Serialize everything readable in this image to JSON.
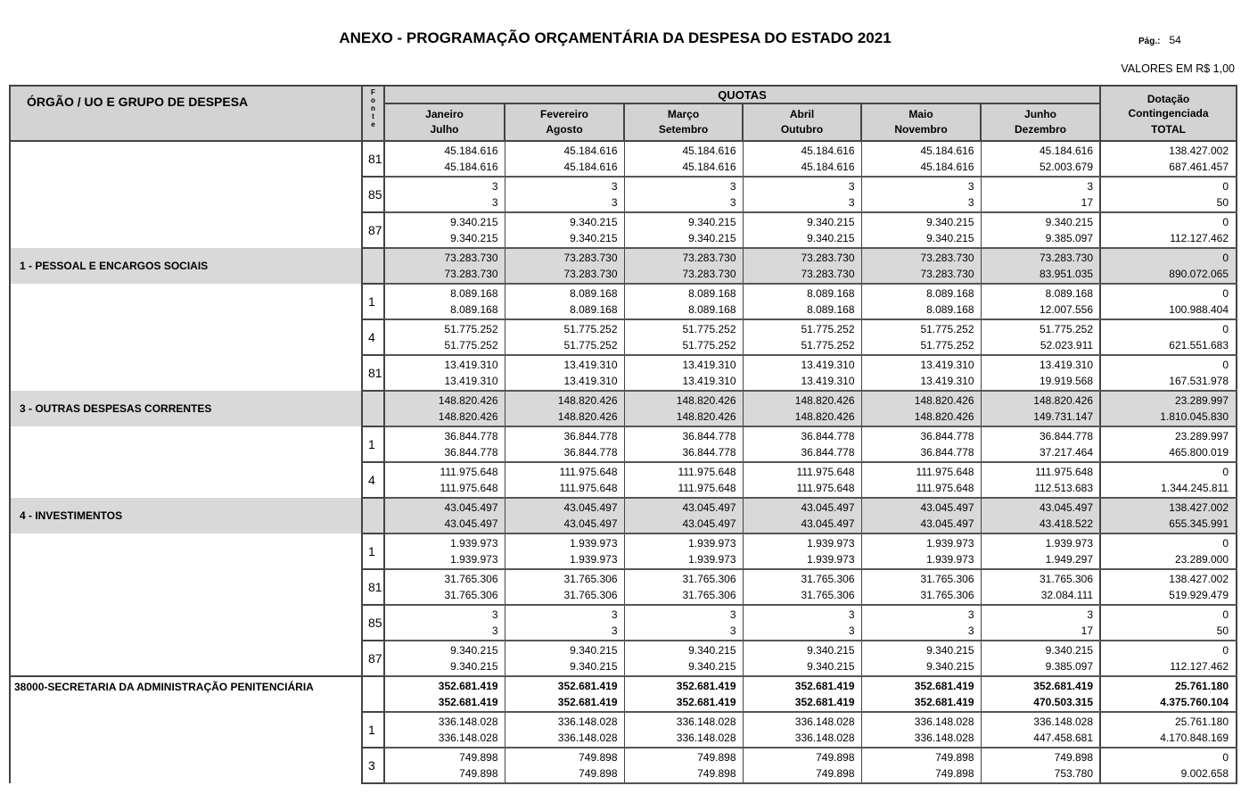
{
  "header": {
    "title": "ANEXO - PROGRAMAÇÃO ORÇAMENTÁRIA DA DESPESA DO ESTADO 2021",
    "page_label": "Pág.:",
    "page_number": "54",
    "units": "VALORES EM R$ 1,00"
  },
  "columns": {
    "org": "ÓRGÃO / UO E GRUPO DE DESPESA",
    "fonte": [
      "F",
      "o",
      "n",
      "t",
      "e"
    ],
    "quotas": "QUOTAS",
    "months": [
      {
        "top": "Janeiro",
        "bottom": "Julho"
      },
      {
        "top": "Fevereiro",
        "bottom": "Agosto"
      },
      {
        "top": "Março",
        "bottom": "Setembro"
      },
      {
        "top": "Abril",
        "bottom": "Outubro"
      },
      {
        "top": "Maio",
        "bottom": "Novembro"
      },
      {
        "top": "Junho",
        "bottom": "Dezembro"
      }
    ],
    "total_top": "Dotação Contingenciada",
    "total_bottom": "TOTAL"
  },
  "rows": [
    {
      "type": "fonte",
      "label": "",
      "fonte": "81",
      "top": [
        "45.184.616",
        "45.184.616",
        "45.184.616",
        "45.184.616",
        "45.184.616",
        "45.184.616"
      ],
      "bottom": [
        "45.184.616",
        "45.184.616",
        "45.184.616",
        "45.184.616",
        "45.184.616",
        "52.003.679"
      ],
      "dotacao": "138.427.002",
      "total": "687.461.457"
    },
    {
      "type": "fonte",
      "label": "",
      "fonte": "85",
      "top": [
        "3",
        "3",
        "3",
        "3",
        "3",
        "3"
      ],
      "bottom": [
        "3",
        "3",
        "3",
        "3",
        "3",
        "17"
      ],
      "dotacao": "0",
      "total": "50"
    },
    {
      "type": "fonte",
      "label": "",
      "fonte": "87",
      "top": [
        "9.340.215",
        "9.340.215",
        "9.340.215",
        "9.340.215",
        "9.340.215",
        "9.340.215"
      ],
      "bottom": [
        "9.340.215",
        "9.340.215",
        "9.340.215",
        "9.340.215",
        "9.340.215",
        "9.385.097"
      ],
      "dotacao": "0",
      "total": "112.127.462"
    },
    {
      "type": "group",
      "label": "1 - PESSOAL E ENCARGOS SOCIAIS",
      "fonte": "",
      "top": [
        "73.283.730",
        "73.283.730",
        "73.283.730",
        "73.283.730",
        "73.283.730",
        "73.283.730"
      ],
      "bottom": [
        "73.283.730",
        "73.283.730",
        "73.283.730",
        "73.283.730",
        "73.283.730",
        "83.951.035"
      ],
      "dotacao": "0",
      "total": "890.072.065"
    },
    {
      "type": "fonte",
      "label": "",
      "fonte": "1",
      "top": [
        "8.089.168",
        "8.089.168",
        "8.089.168",
        "8.089.168",
        "8.089.168",
        "8.089.168"
      ],
      "bottom": [
        "8.089.168",
        "8.089.168",
        "8.089.168",
        "8.089.168",
        "8.089.168",
        "12.007.556"
      ],
      "dotacao": "0",
      "total": "100.988.404"
    },
    {
      "type": "fonte",
      "label": "",
      "fonte": "4",
      "top": [
        "51.775.252",
        "51.775.252",
        "51.775.252",
        "51.775.252",
        "51.775.252",
        "51.775.252"
      ],
      "bottom": [
        "51.775.252",
        "51.775.252",
        "51.775.252",
        "51.775.252",
        "51.775.252",
        "52.023.911"
      ],
      "dotacao": "0",
      "total": "621.551.683"
    },
    {
      "type": "fonte",
      "label": "",
      "fonte": "81",
      "top": [
        "13.419.310",
        "13.419.310",
        "13.419.310",
        "13.419.310",
        "13.419.310",
        "13.419.310"
      ],
      "bottom": [
        "13.419.310",
        "13.419.310",
        "13.419.310",
        "13.419.310",
        "13.419.310",
        "19.919.568"
      ],
      "dotacao": "0",
      "total": "167.531.978"
    },
    {
      "type": "group",
      "label": "3 - OUTRAS DESPESAS CORRENTES",
      "fonte": "",
      "top": [
        "148.820.426",
        "148.820.426",
        "148.820.426",
        "148.820.426",
        "148.820.426",
        "148.820.426"
      ],
      "bottom": [
        "148.820.426",
        "148.820.426",
        "148.820.426",
        "148.820.426",
        "148.820.426",
        "149.731.147"
      ],
      "dotacao": "23.289.997",
      "total": "1.810.045.830"
    },
    {
      "type": "fonte",
      "label": "",
      "fonte": "1",
      "top": [
        "36.844.778",
        "36.844.778",
        "36.844.778",
        "36.844.778",
        "36.844.778",
        "36.844.778"
      ],
      "bottom": [
        "36.844.778",
        "36.844.778",
        "36.844.778",
        "36.844.778",
        "36.844.778",
        "37.217.464"
      ],
      "dotacao": "23.289.997",
      "total": "465.800.019"
    },
    {
      "type": "fonte",
      "label": "",
      "fonte": "4",
      "top": [
        "111.975.648",
        "111.975.648",
        "111.975.648",
        "111.975.648",
        "111.975.648",
        "111.975.648"
      ],
      "bottom": [
        "111.975.648",
        "111.975.648",
        "111.975.648",
        "111.975.648",
        "111.975.648",
        "112.513.683"
      ],
      "dotacao": "0",
      "total": "1.344.245.811"
    },
    {
      "type": "group",
      "label": "4 - INVESTIMENTOS",
      "fonte": "",
      "top": [
        "43.045.497",
        "43.045.497",
        "43.045.497",
        "43.045.497",
        "43.045.497",
        "43.045.497"
      ],
      "bottom": [
        "43.045.497",
        "43.045.497",
        "43.045.497",
        "43.045.497",
        "43.045.497",
        "43.418.522"
      ],
      "dotacao": "138.427.002",
      "total": "655.345.991"
    },
    {
      "type": "fonte",
      "label": "",
      "fonte": "1",
      "top": [
        "1.939.973",
        "1.939.973",
        "1.939.973",
        "1.939.973",
        "1.939.973",
        "1.939.973"
      ],
      "bottom": [
        "1.939.973",
        "1.939.973",
        "1.939.973",
        "1.939.973",
        "1.939.973",
        "1.949.297"
      ],
      "dotacao": "0",
      "total": "23.289.000"
    },
    {
      "type": "fonte",
      "label": "",
      "fonte": "81",
      "top": [
        "31.765.306",
        "31.765.306",
        "31.765.306",
        "31.765.306",
        "31.765.306",
        "31.765.306"
      ],
      "bottom": [
        "31.765.306",
        "31.765.306",
        "31.765.306",
        "31.765.306",
        "31.765.306",
        "32.084.111"
      ],
      "dotacao": "138.427.002",
      "total": "519.929.479"
    },
    {
      "type": "fonte",
      "label": "",
      "fonte": "85",
      "top": [
        "3",
        "3",
        "3",
        "3",
        "3",
        "3"
      ],
      "bottom": [
        "3",
        "3",
        "3",
        "3",
        "3",
        "17"
      ],
      "dotacao": "0",
      "total": "50"
    },
    {
      "type": "fonte",
      "label": "",
      "fonte": "87",
      "top": [
        "9.340.215",
        "9.340.215",
        "9.340.215",
        "9.340.215",
        "9.340.215",
        "9.340.215"
      ],
      "bottom": [
        "9.340.215",
        "9.340.215",
        "9.340.215",
        "9.340.215",
        "9.340.215",
        "9.385.097"
      ],
      "dotacao": "0",
      "total": "112.127.462"
    },
    {
      "type": "org",
      "label": "38000-SECRETARIA DA ADMINISTRAÇÃO PENITENCIÁRIA",
      "fonte": "",
      "top": [
        "352.681.419",
        "352.681.419",
        "352.681.419",
        "352.681.419",
        "352.681.419",
        "352.681.419"
      ],
      "bottom": [
        "352.681.419",
        "352.681.419",
        "352.681.419",
        "352.681.419",
        "352.681.419",
        "470.503.315"
      ],
      "dotacao": "25.761.180",
      "total": "4.375.760.104"
    },
    {
      "type": "fonte",
      "label": "",
      "fonte": "1",
      "top": [
        "336.148.028",
        "336.148.028",
        "336.148.028",
        "336.148.028",
        "336.148.028",
        "336.148.028"
      ],
      "bottom": [
        "336.148.028",
        "336.148.028",
        "336.148.028",
        "336.148.028",
        "336.148.028",
        "447.458.681"
      ],
      "dotacao": "25.761.180",
      "total": "4.170.848.169"
    },
    {
      "type": "fonte",
      "label": "",
      "fonte": "3",
      "top": [
        "749.898",
        "749.898",
        "749.898",
        "749.898",
        "749.898",
        "749.898"
      ],
      "bottom": [
        "749.898",
        "749.898",
        "749.898",
        "749.898",
        "749.898",
        "753.780"
      ],
      "dotacao": "0",
      "total": "9.002.658"
    }
  ]
}
